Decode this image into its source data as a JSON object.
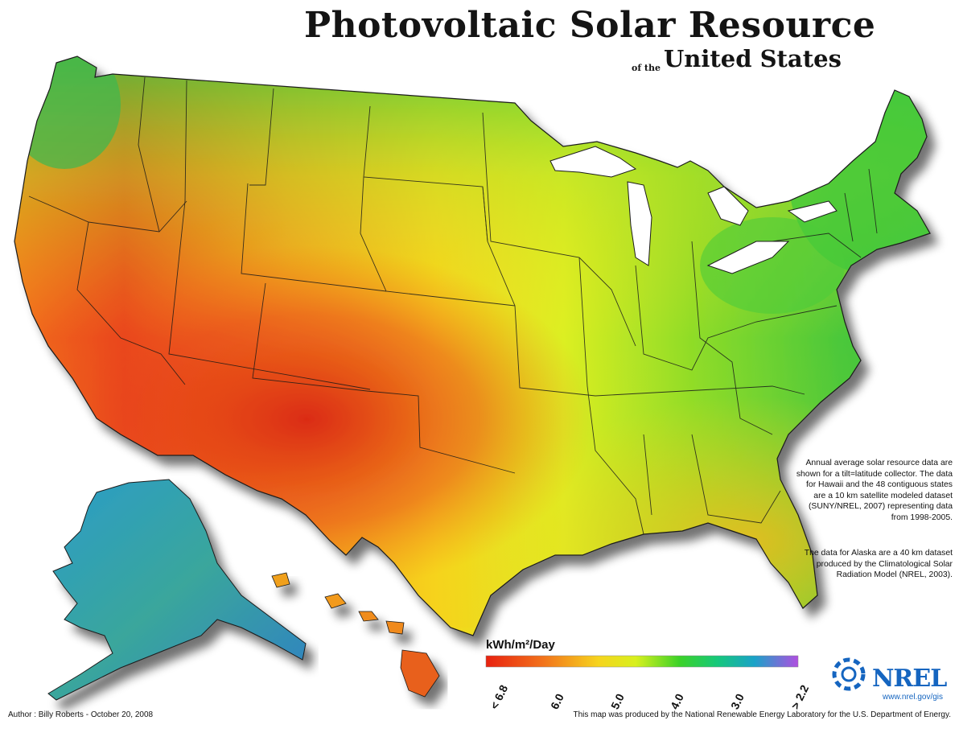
{
  "map": {
    "title": "Photovoltaic Solar Resource",
    "subtitle_small": "of the",
    "subtitle_main": "United States",
    "description_1": "Annual average solar resource data are shown for a tilt=latitude collector. The data for Hawaii and the 48 contiguous states are a 10 km satellite modeled dataset (SUNY/NREL, 2007) representing data from 1998-2005.",
    "description_2": "The data for Alaska are a 40 km dataset produced by the Climatological Solar Radiation Model (NREL, 2003).",
    "author": "Author : Billy Roberts - October 20, 2008",
    "credit": "This map was produced by the National Renewable Energy Laboratory for the U.S. Department of Energy.",
    "logo_text": "NREL",
    "logo_url": "www.nrel.gov/gis"
  },
  "legend": {
    "unit": "kWh/m²/Day",
    "ticks": [
      "< 6.8",
      "6.0",
      "5.0",
      "4.0",
      "3.0",
      "> 2.2"
    ],
    "colors": [
      "#e8210f",
      "#f2711b",
      "#f6c81e",
      "#e8f01e",
      "#6fd21e",
      "#16c85a",
      "#1aaa8c",
      "#3a7fd2",
      "#8a4fd8",
      "#b04fe0"
    ]
  },
  "colors": {
    "high": "#e0300f",
    "mid_high": "#f08a1e",
    "mid": "#f6e61e",
    "mid_low": "#a8e02a",
    "low": "#30c83c",
    "alaska": "#3aa6a0",
    "border": "#1a1a1a"
  }
}
